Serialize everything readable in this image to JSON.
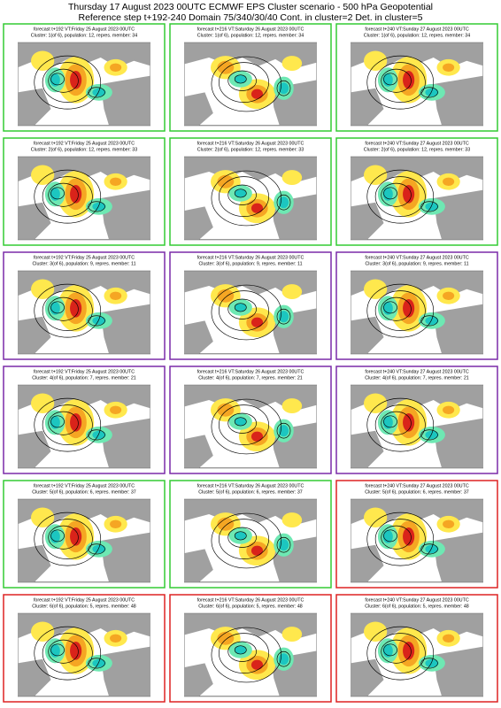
{
  "header": {
    "title_line1": "Thursday 17 August 2023 00UTC ECMWF EPS Cluster scenario - 500 hPa Geopotential",
    "title_line2": "Reference step t+192-240 Domain 75/340/30/40 Cont. in cluster=2 Det. in cluster=5"
  },
  "panels": [
    {
      "forecast": "forecast t+192 VT:Friday 25 August 2023 00UTC",
      "cluster": "Cluster: 1(of 6), population: 12, repres. member: 34",
      "frame_color": "#33cc33"
    },
    {
      "forecast": "forecast t+216 VT:Saturday 26 August 2023 00UTC",
      "cluster": "Cluster: 1(of 6), population: 12, repres. member: 34",
      "frame_color": "#33cc33"
    },
    {
      "forecast": "forecast t+240 VT:Sunday 27 August 2023 00UTC",
      "cluster": "Cluster: 1(of 6), population: 12, repres. member: 34",
      "frame_color": "#33cc33"
    },
    {
      "forecast": "forecast t+192 VT:Friday 25 August 2023 00UTC",
      "cluster": "Cluster: 2(of 6), population: 12, repres. member: 33",
      "frame_color": "#33cc33"
    },
    {
      "forecast": "forecast t+216 VT:Saturday 26 August 2023 00UTC",
      "cluster": "Cluster: 2(of 6), population: 12, repres. member: 33",
      "frame_color": "#33cc33"
    },
    {
      "forecast": "forecast t+240 VT:Sunday 27 August 2023 00UTC",
      "cluster": "Cluster: 2(of 6), population: 12, repres. member: 33",
      "frame_color": "#33cc33"
    },
    {
      "forecast": "forecast t+192 VT:Friday 25 August 2023 00UTC",
      "cluster": "Cluster: 3(of 6), population: 9, repres. member: 11",
      "frame_color": "#7a2aa8"
    },
    {
      "forecast": "forecast t+216 VT:Saturday 26 August 2023 00UTC",
      "cluster": "Cluster: 3(of 6), population: 9, repres. member: 11",
      "frame_color": "#7a2aa8"
    },
    {
      "forecast": "forecast t+240 VT:Sunday 27 August 2023 00UTC",
      "cluster": "Cluster: 3(of 6), population: 9, repres. member: 11",
      "frame_color": "#7a2aa8"
    },
    {
      "forecast": "forecast t+192 VT:Friday 25 August 2023 00UTC",
      "cluster": "Cluster: 4(of 6), population: 7, repres. member: 21",
      "frame_color": "#7a2aa8"
    },
    {
      "forecast": "forecast t+216 VT:Saturday 26 August 2023 00UTC",
      "cluster": "Cluster: 4(of 6), population: 7, repres. member: 21",
      "frame_color": "#7a2aa8"
    },
    {
      "forecast": "forecast t+240 VT:Sunday 27 August 2023 00UTC",
      "cluster": "Cluster: 4(of 6), population: 7, repres. member: 21",
      "frame_color": "#7a2aa8"
    },
    {
      "forecast": "forecast t+192 VT:Friday 25 August 2023 00UTC",
      "cluster": "Cluster: 5(of 6), population: 6, repres. member: 37",
      "frame_color": "#33cc33"
    },
    {
      "forecast": "forecast t+216 VT:Saturday 26 August 2023 00UTC",
      "cluster": "Cluster: 5(of 6), population: 6, repres. member: 37",
      "frame_color": "#33cc33"
    },
    {
      "forecast": "forecast t+240 VT:Sunday 27 August 2023 00UTC",
      "cluster": "Cluster: 5(of 6), population: 6, repres. member: 37",
      "frame_color": "#dd2222"
    },
    {
      "forecast": "forecast t+192 VT:Friday 25 August 2023 00UTC",
      "cluster": "Cluster: 6(of 6), population: 5, repres. member: 48",
      "frame_color": "#dd2222"
    },
    {
      "forecast": "forecast t+216 VT:Saturday 26 August 2023 00UTC",
      "cluster": "Cluster: 6(of 6), population: 5, repres. member: 48",
      "frame_color": "#dd2222"
    },
    {
      "forecast": "forecast t+240 VT:Sunday 27 August 2023 00UTC",
      "cluster": "Cluster: 6(of 6), population: 5, repres. member: 48",
      "frame_color": "#dd2222"
    }
  ]
}
